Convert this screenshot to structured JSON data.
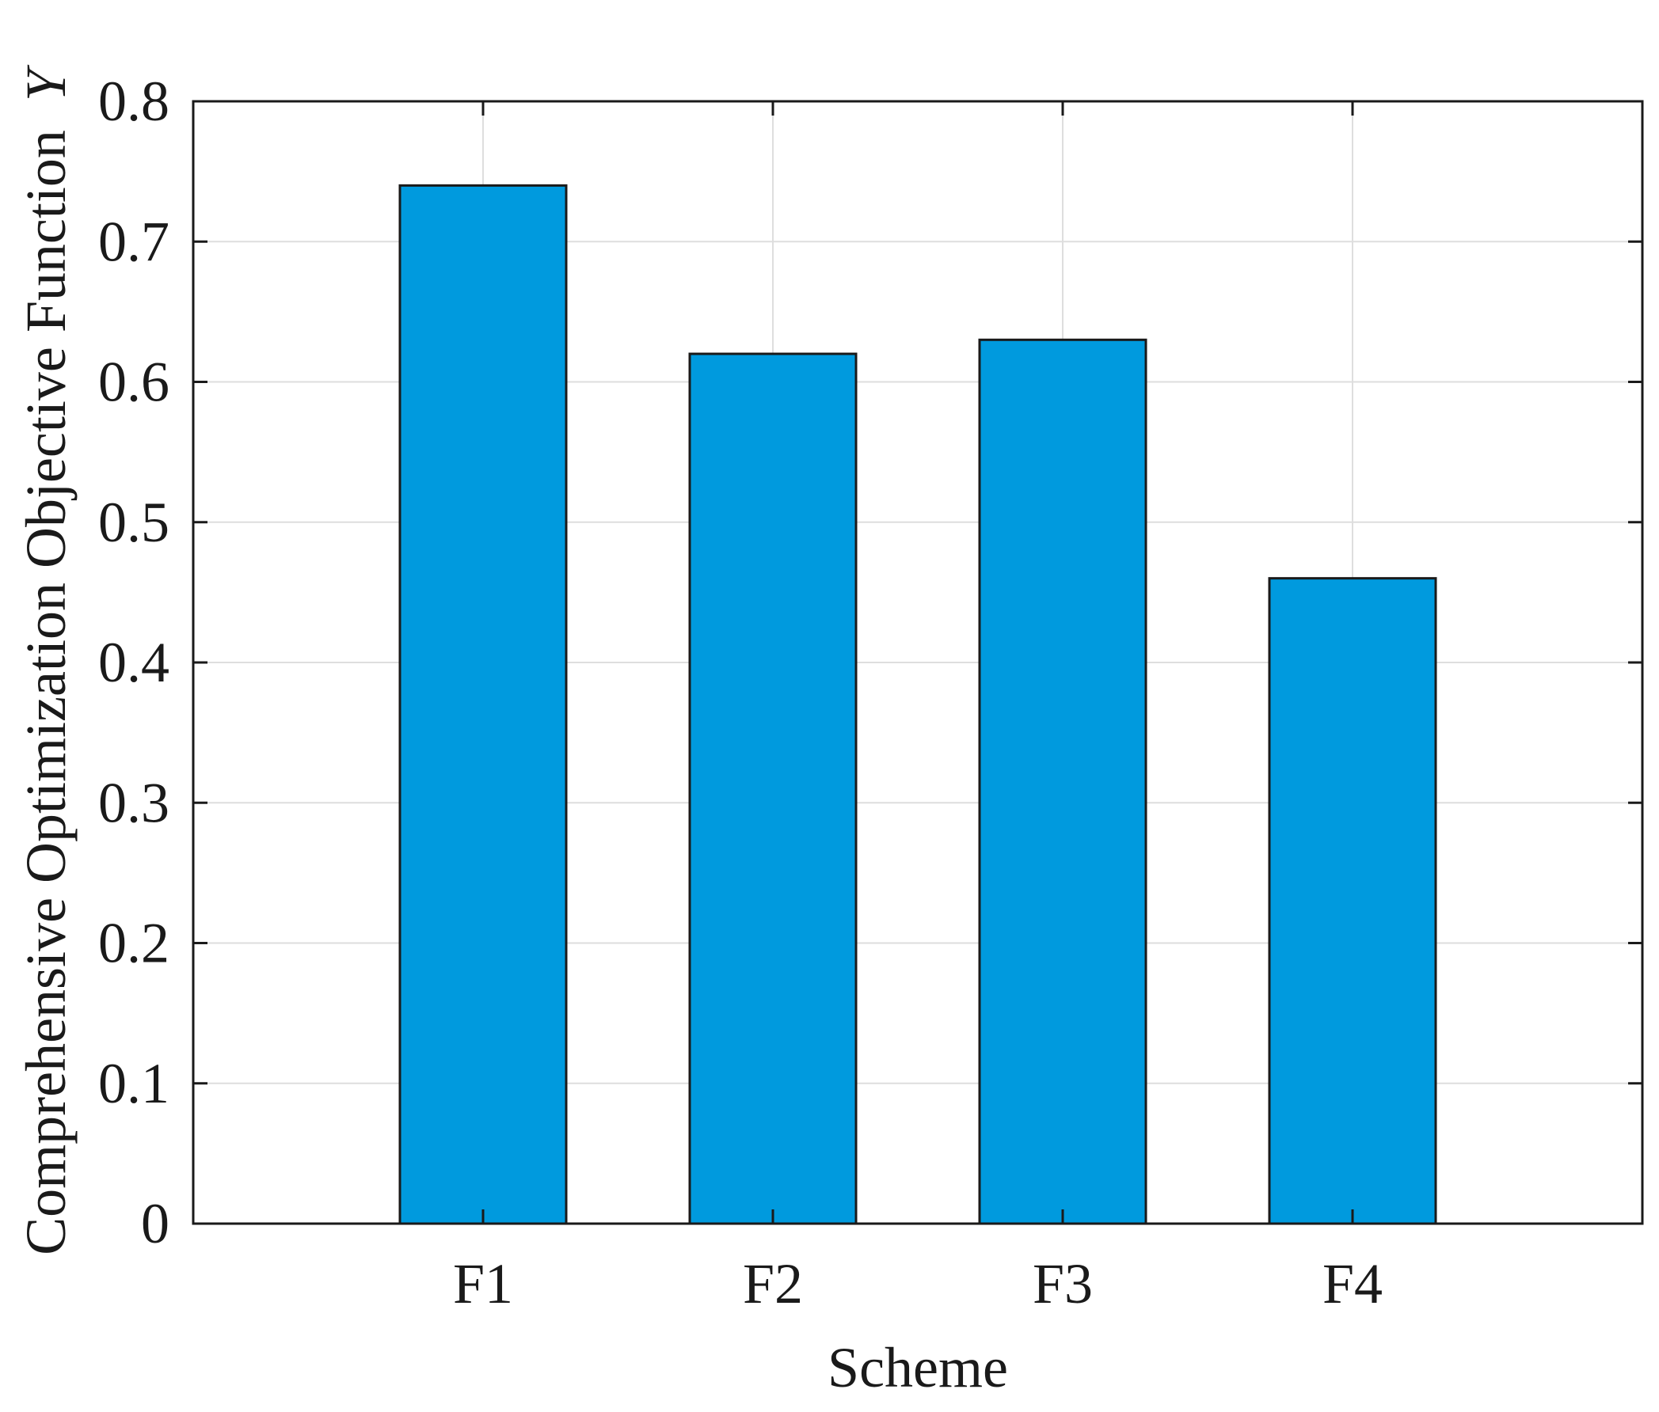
{
  "chart_data": {
    "type": "bar",
    "categories": [
      "F1",
      "F2",
      "F3",
      "F4"
    ],
    "values": [
      0.74,
      0.62,
      0.63,
      0.46
    ],
    "xlabel": "Scheme",
    "ylabel": "Comprehensive Optimization Objective Function",
    "ylabel_symbol": "Y",
    "ylim": [
      0,
      0.8
    ],
    "yticks": [
      "0",
      "0.1",
      "0.2",
      "0.3",
      "0.4",
      "0.5",
      "0.6",
      "0.7",
      "0.8"
    ],
    "grid": true,
    "bar_color": "#009ADE",
    "bar_edge_color": "#1a1a1a"
  }
}
